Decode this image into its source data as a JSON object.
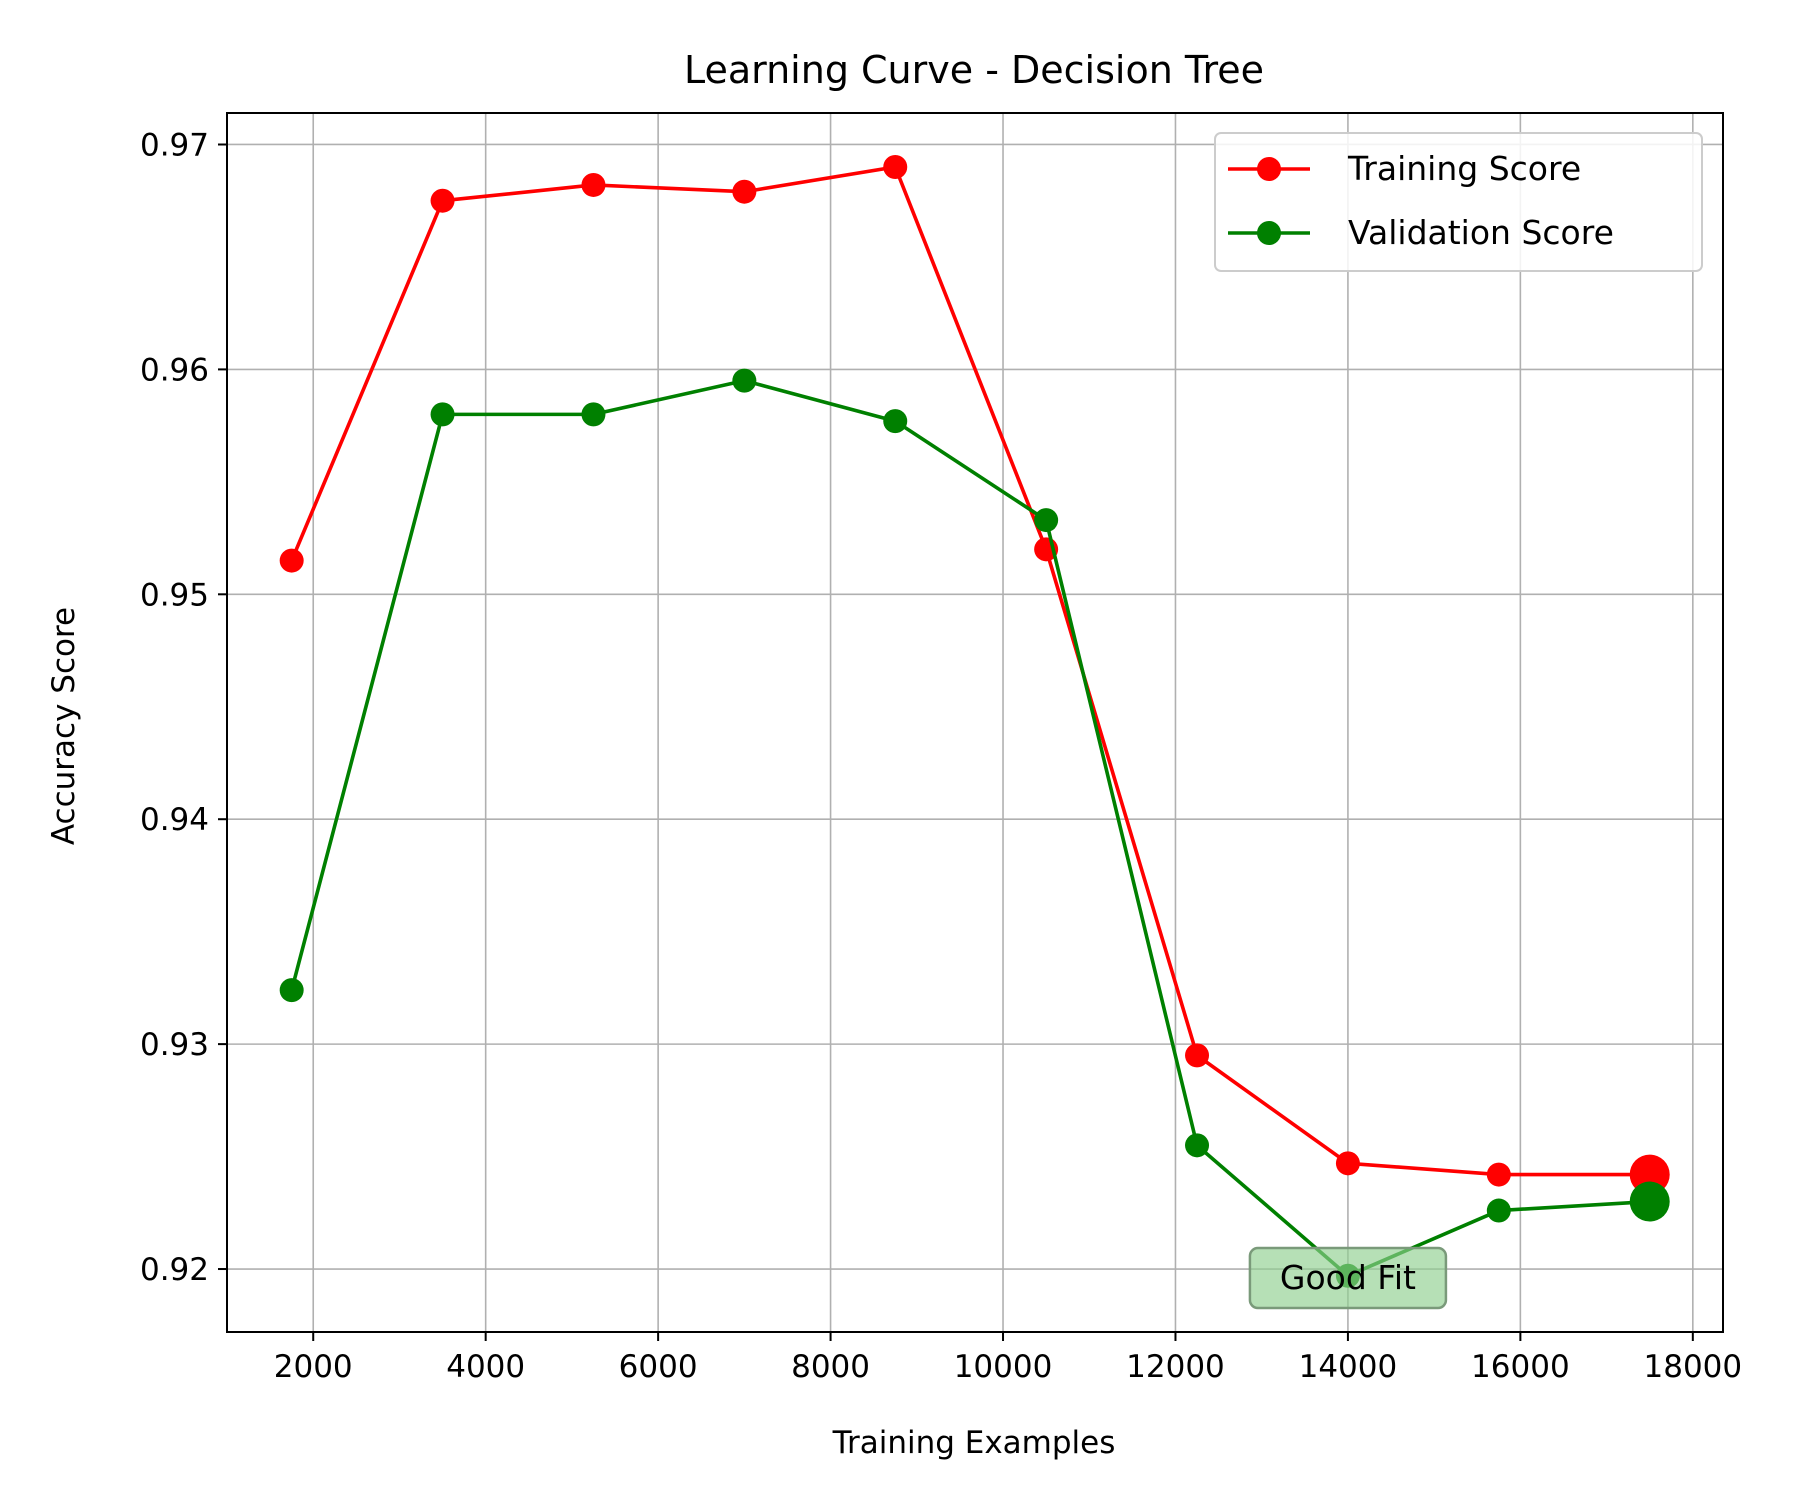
{
  "chart_data": {
    "type": "line",
    "title": "Learning Curve - Decision Tree",
    "xlabel": "Training Examples",
    "ylabel": "Accuracy Score",
    "xlim": [
      1000,
      18350
    ],
    "ylim": [
      0.9172,
      0.9714
    ],
    "xticks": [
      2000,
      4000,
      6000,
      8000,
      10000,
      12000,
      14000,
      16000,
      18000
    ],
    "xtick_labels": [
      "2000",
      "4000",
      "6000",
      "8000",
      "10000",
      "12000",
      "14000",
      "16000",
      "18000"
    ],
    "yticks": [
      0.92,
      0.93,
      0.94,
      0.95,
      0.96,
      0.97
    ],
    "ytick_labels": [
      "0.92",
      "0.93",
      "0.94",
      "0.95",
      "0.96",
      "0.97"
    ],
    "grid": true,
    "legend_position": "top-right",
    "x": [
      1750,
      3500,
      5250,
      7000,
      8750,
      10500,
      12250,
      14000,
      15750,
      17500
    ],
    "series": [
      {
        "name": "Training Score",
        "color": "#ff0000",
        "values": [
          0.9515,
          0.9675,
          0.9682,
          0.9679,
          0.969,
          0.952,
          0.9295,
          0.9247,
          0.9242,
          0.9242
        ]
      },
      {
        "name": "Validation Score",
        "color": "#008000",
        "values": [
          0.9324,
          0.958,
          0.958,
          0.9595,
          0.9577,
          0.9533,
          0.9255,
          0.9197,
          0.9226,
          0.923
        ]
      }
    ],
    "highlighted_point_index": 9,
    "annotation": {
      "text": "Good Fit",
      "x": 14000,
      "y": 0.9196,
      "background": "#8fcf8f"
    }
  }
}
